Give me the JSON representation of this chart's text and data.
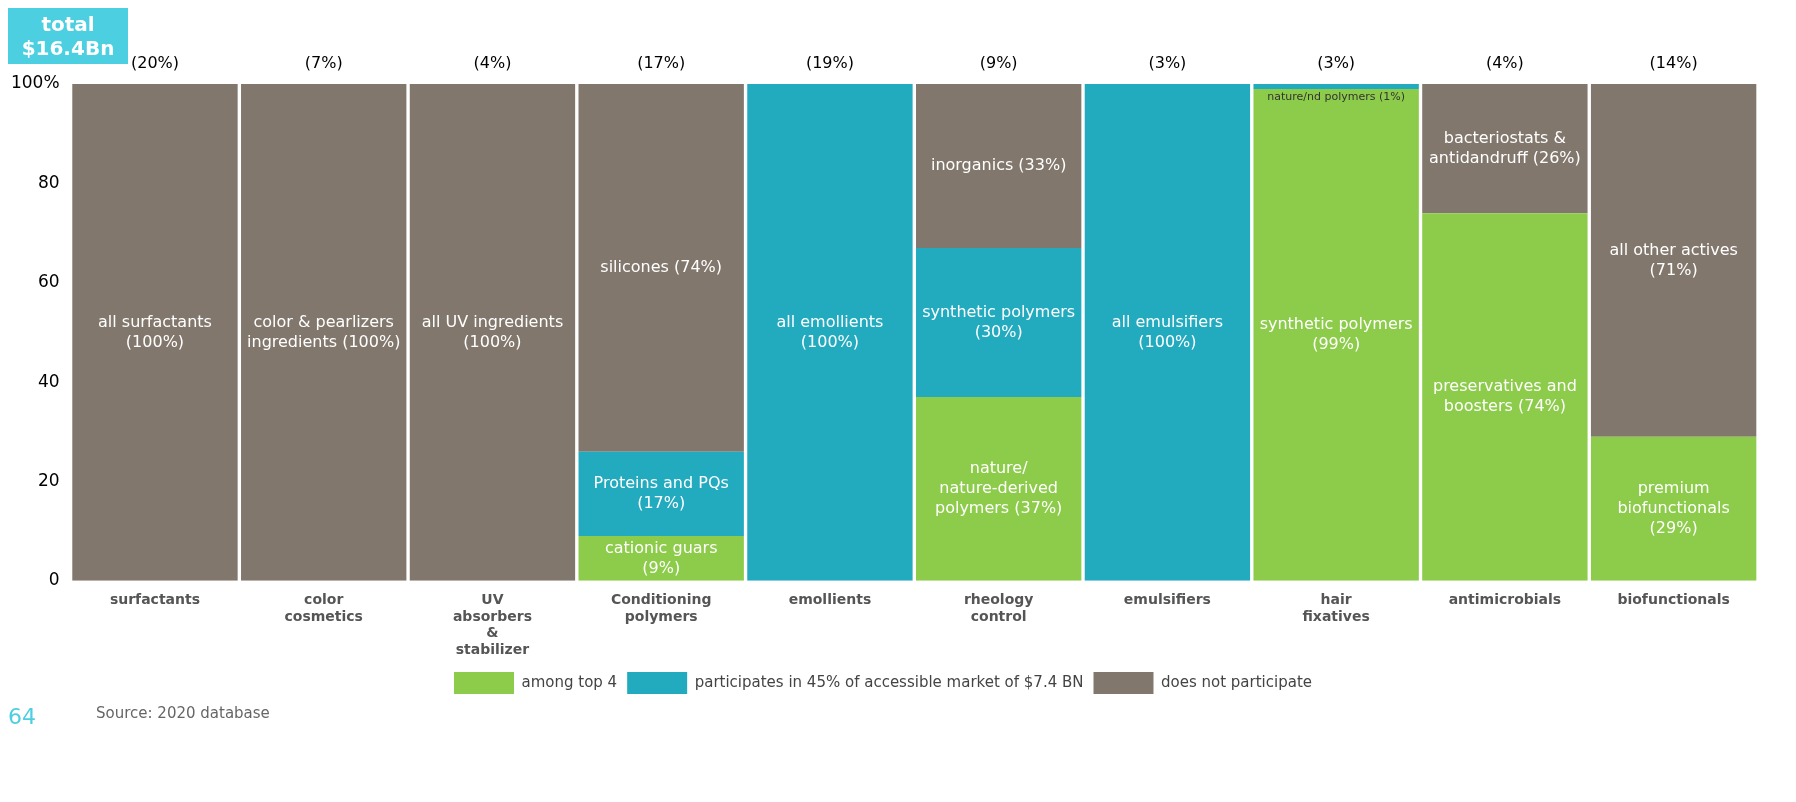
{
  "chart_data": {
    "type": "bar",
    "stacked": true,
    "title": "total $16.4Bn",
    "categories": [
      "surfactants",
      "color cosmetics",
      "UV absorbers & stabilizer",
      "Conditioning polymers",
      "emollients",
      "rheology control",
      "emulsifiers",
      "hair fixatives",
      "antimicrobials",
      "biofunctionals"
    ],
    "series": [
      {
        "name": "among top 4",
        "color": "#8ccc4a",
        "values": [
          null,
          null,
          null,
          9,
          null,
          37,
          null,
          99,
          74,
          29
        ],
        "value_labels": [
          null,
          null,
          null,
          "cationic guars (9%)",
          null,
          "nature/ nature-derived polymers (37%)",
          null,
          "synthetic polymers (99%)",
          "preservatives and boosters (74%)",
          "premium biofunctionals (29%)"
        ]
      },
      {
        "name": "participates in 45% of accessible market of $7.4 BN",
        "color": "#22aabf",
        "values": [
          null,
          null,
          null,
          17,
          100,
          30,
          100,
          1,
          null,
          null
        ],
        "value_labels": [
          null,
          null,
          null,
          "Proteins and PQs (17%)",
          "all emollients (100%)",
          "synthetic polymers (30%)",
          "all emulsifiers (100%)",
          "nature/nd polymers (1%)",
          null,
          null
        ]
      },
      {
        "name": "does not participate",
        "color": "#82776d",
        "values": [
          100,
          100,
          100,
          74,
          null,
          33,
          null,
          null,
          26,
          71
        ],
        "value_labels": [
          "all surfactants (100%)",
          "color & pearlizers ingredients (100%)",
          "all UV ingredients (100%)",
          "silicones (74%)",
          null,
          "inorganics (33%)",
          null,
          null,
          "bacteriostats & antidandruff (26%)",
          "all other actives (71%)"
        ]
      }
    ],
    "ylim": [
      0,
      100
    ],
    "yticks": [
      0,
      20,
      40,
      60,
      80,
      {
        "value": 100,
        "label": "100%"
      }
    ],
    "grid": false,
    "legend": "bottom",
    "annotations": [
      "64",
      "Source: 2020 database",
      {
        "text": "(20%)",
        "x": "surfactants",
        "y": 100
      },
      {
        "text": "(7%)",
        "x": "color cosmetics",
        "y": 100
      },
      {
        "text": "(4%)",
        "x": "UV absorbers & stabilizer",
        "y": 100
      },
      {
        "text": "(17%)",
        "x": "Conditioning polymers",
        "y": 100
      },
      {
        "text": "(19%)",
        "x": "emollients",
        "y": 100
      },
      {
        "text": "(9%)",
        "x": "rheology control",
        "y": 100
      },
      {
        "text": "(3%)",
        "x": "emulsifiers",
        "y": 100
      },
      {
        "text": "(3%)",
        "x": "hair fixatives",
        "y": 100
      },
      {
        "text": "(4%)",
        "x": "antimicrobials",
        "y": 100
      },
      {
        "text": "(14%)",
        "x": "biofunctionals",
        "y": 100
      }
    ]
  }
}
